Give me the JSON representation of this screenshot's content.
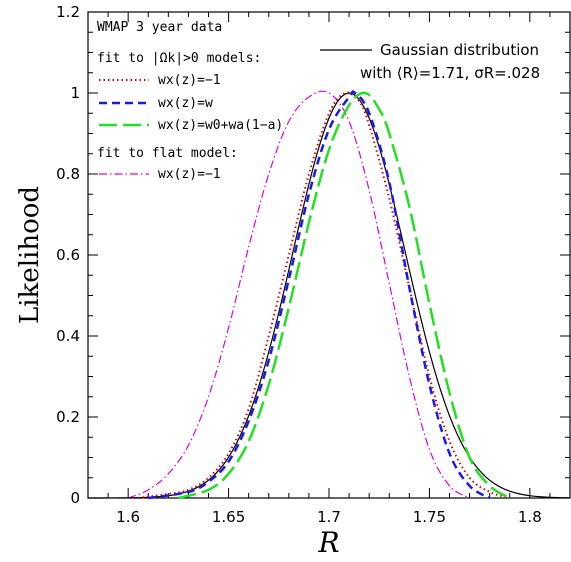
{
  "chart_data": {
    "type": "line",
    "xlabel": "R",
    "ylabel": "Likelihood",
    "xlim": [
      1.58,
      1.82
    ],
    "ylim": [
      0,
      1.2
    ],
    "grid": false,
    "legend_position": "top-left and top-right",
    "xticks": [
      "1.6",
      "1.65",
      "1.7",
      "1.75",
      "1.8"
    ],
    "yticks": [
      "0",
      "0.2",
      "0.4",
      "0.6",
      "0.8",
      "1",
      "1.2"
    ],
    "annotations": {
      "dataset": "WMAP 3 year data",
      "group1": "fit to |Ωk|>0 models:",
      "group2": "fit to flat model:"
    },
    "series": [
      {
        "name": "Gaussian distribution",
        "name_line2": "with ⟨R⟩=1.71, σR=.028",
        "style": "solid",
        "color": "#000000",
        "mean": 1.71,
        "sigma": 0.028,
        "x": [
          1.6,
          1.62,
          1.63,
          1.64,
          1.65,
          1.66,
          1.67,
          1.68,
          1.69,
          1.7,
          1.71,
          1.72,
          1.73,
          1.74,
          1.75,
          1.76,
          1.77,
          1.78,
          1.79,
          1.8,
          1.82
        ],
        "values": [
          0.0,
          0.006,
          0.017,
          0.044,
          0.101,
          0.203,
          0.36,
          0.563,
          0.775,
          0.938,
          1.0,
          0.938,
          0.775,
          0.563,
          0.36,
          0.203,
          0.101,
          0.044,
          0.017,
          0.006,
          0.0
        ]
      },
      {
        "name": "wx(z)=−1",
        "group": "fit to |Ωk|>0 models",
        "style": "dotted",
        "color": "#e00000",
        "x": [
          1.605,
          1.62,
          1.63,
          1.64,
          1.65,
          1.66,
          1.67,
          1.68,
          1.69,
          1.7,
          1.708,
          1.715,
          1.72,
          1.73,
          1.74,
          1.75,
          1.76,
          1.77,
          1.78,
          1.79
        ],
        "values": [
          0.0,
          0.01,
          0.02,
          0.05,
          0.11,
          0.22,
          0.4,
          0.6,
          0.8,
          0.95,
          1.0,
          0.98,
          0.92,
          0.74,
          0.52,
          0.3,
          0.14,
          0.05,
          0.015,
          0.0
        ]
      },
      {
        "name": "wx(z)=w",
        "group": "fit to |Ωk|>0 models",
        "style": "short-dash",
        "color": "#1a1ae6",
        "x": [
          1.61,
          1.63,
          1.64,
          1.65,
          1.66,
          1.67,
          1.68,
          1.69,
          1.7,
          1.71,
          1.713,
          1.72,
          1.73,
          1.74,
          1.75,
          1.76,
          1.77,
          1.78
        ],
        "values": [
          0.0,
          0.015,
          0.04,
          0.09,
          0.19,
          0.34,
          0.54,
          0.75,
          0.91,
          0.99,
          1.0,
          0.95,
          0.78,
          0.52,
          0.28,
          0.11,
          0.03,
          0.0
        ]
      },
      {
        "name": "wx(z)=w0+wa(1−a)",
        "group": "fit to |Ωk|>0 models",
        "style": "long-dash",
        "color": "#22e022",
        "x": [
          1.625,
          1.64,
          1.65,
          1.66,
          1.67,
          1.68,
          1.69,
          1.7,
          1.71,
          1.718,
          1.725,
          1.73,
          1.74,
          1.75,
          1.76,
          1.77,
          1.78,
          1.79
        ],
        "values": [
          0.0,
          0.02,
          0.06,
          0.14,
          0.28,
          0.47,
          0.68,
          0.86,
          0.97,
          1.0,
          0.96,
          0.9,
          0.72,
          0.48,
          0.26,
          0.1,
          0.03,
          0.0
        ]
      },
      {
        "name": "wx(z)=−1",
        "group": "fit to flat model",
        "style": "dash-dot",
        "color": "#e000e0",
        "x": [
          1.6,
          1.61,
          1.62,
          1.63,
          1.64,
          1.65,
          1.66,
          1.67,
          1.68,
          1.69,
          1.7,
          1.71,
          1.72,
          1.73,
          1.74,
          1.75,
          1.76,
          1.77
        ],
        "values": [
          0.0,
          0.02,
          0.06,
          0.13,
          0.25,
          0.42,
          0.62,
          0.8,
          0.93,
          0.99,
          1.0,
          0.93,
          0.76,
          0.53,
          0.3,
          0.12,
          0.03,
          0.0
        ]
      }
    ]
  }
}
